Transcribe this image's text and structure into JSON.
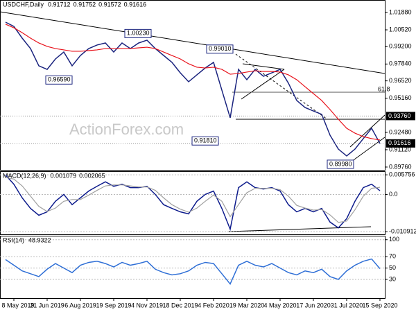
{
  "chart_data": [
    {
      "type": "line",
      "title": "USDCHF,Daily",
      "ohlc": [
        0.91712,
        0.91752,
        0.91572,
        0.91616
      ],
      "watermark": "ActionForex.com",
      "fib_label": "61.8",
      "ylim": [
        0.8954,
        1.0286
      ],
      "yticks": [
        {
          "value": 1.0188,
          "label": "1.01880"
        },
        {
          "value": 1.0052,
          "label": "1.00520"
        },
        {
          "value": 0.992,
          "label": "0.99200"
        },
        {
          "value": 0.9784,
          "label": "0.97840"
        },
        {
          "value": 0.9652,
          "label": "0.96520"
        },
        {
          "value": 0.9516,
          "label": "0.95160"
        },
        {
          "value": 0.9248,
          "label": "0.92480"
        },
        {
          "value": 0.9112,
          "label": "0.91120"
        },
        {
          "value": 0.8976,
          "label": "0.89760"
        }
      ],
      "markers": [
        {
          "value": 0.9376,
          "label": "0.93760"
        },
        {
          "value": 0.91616,
          "label": "0.91616"
        }
      ],
      "annotations": [
        {
          "value": 1.0023,
          "label": "1.00230"
        },
        {
          "value": 0.9659,
          "label": "0.96590"
        },
        {
          "value": 0.9901,
          "label": "0.99010"
        },
        {
          "value": 0.9181,
          "label": "0.91810"
        },
        {
          "value": 0.8998,
          "label": "0.89980"
        }
      ],
      "series": [
        {
          "color": "#1a237e",
          "values": [
            1.0112,
            1.0079,
            0.9987,
            0.9905,
            0.977,
            0.9742,
            0.9824,
            0.9878,
            0.977,
            0.9851,
            0.9905,
            0.9933,
            0.9949,
            0.9878,
            0.9949,
            0.9905,
            0.9949,
            0.9971,
            0.9905,
            0.9851,
            0.9797,
            0.9715,
            0.9645,
            0.9699,
            0.9753,
            0.9797,
            0.9579,
            0.9362,
            0.9742,
            0.9661,
            0.9742,
            0.9688,
            0.9715,
            0.9742,
            0.9634,
            0.9498,
            0.9443,
            0.9416,
            0.9389,
            0.9226,
            0.9117,
            0.9063,
            0.9117,
            0.9199,
            0.928,
            0.9161
          ]
        },
        {
          "color": "#e8121b",
          "values": [
            1.0096,
            1.0068,
            1.003,
            0.9987,
            0.9949,
            0.9922,
            0.9905,
            0.9895,
            0.9884,
            0.9884,
            0.9889,
            0.9895,
            0.9905,
            0.9905,
            0.9905,
            0.9905,
            0.9911,
            0.9916,
            0.9905,
            0.9878,
            0.9851,
            0.9824,
            0.9786,
            0.9759,
            0.9753,
            0.9759,
            0.9742,
            0.9704,
            0.971,
            0.9721,
            0.9731,
            0.9726,
            0.9726,
            0.9721,
            0.9699,
            0.9661,
            0.9606,
            0.9552,
            0.9498,
            0.9427,
            0.9351,
            0.928,
            0.9242,
            0.9215,
            0.9199,
            0.9188
          ]
        }
      ]
    },
    {
      "type": "line",
      "title": "MACD(12,26,9)",
      "readout": [
        0.001079,
        0.002065
      ],
      "ylim": [
        -0.0117,
        0.0068
      ],
      "yticks": [
        0.005756,
        {
          "value": 0,
          "label": "0.0"
        },
        -0.010912
      ],
      "series": [
        {
          "color": "#0d1b8c",
          "values": [
            0.0057,
            0.003,
            -0.001,
            -0.0041,
            -0.0061,
            -0.0051,
            -0.002,
            0,
            -0.003,
            -0.001,
            0.001,
            0.0024,
            0.0037,
            0.0024,
            0.003,
            0.002,
            0.002,
            0.0024,
            0,
            -0.003,
            -0.0041,
            -0.0051,
            -0.0057,
            -0.002,
            0,
            0.001,
            -0.0041,
            -0.0102,
            0.002,
            0.0037,
            0.002,
            0.0016,
            0.002,
            0.001,
            -0.003,
            -0.0051,
            -0.0041,
            -0.0051,
            -0.0041,
            -0.0081,
            -0.0098,
            -0.0071,
            -0.002,
            0.002,
            0.003,
            0.0011
          ]
        },
        {
          "color": "#a0a0a0",
          "values": [
            0.005,
            0.0045,
            0.0025,
            -0.0005,
            -0.0035,
            -0.005,
            -0.004,
            -0.002,
            -0.0015,
            -0.0015,
            -0.0002,
            0.0012,
            0.0025,
            0.0028,
            0.0028,
            0.0025,
            0.0022,
            0.0022,
            0.0012,
            -0.001,
            -0.003,
            -0.0043,
            -0.0052,
            -0.004,
            -0.002,
            -0.0002,
            -0.002,
            -0.0065,
            -0.003,
            0.0005,
            0.0018,
            0.0018,
            0.0018,
            0.0014,
            -0.0005,
            -0.0032,
            -0.004,
            -0.0046,
            -0.0044,
            -0.006,
            -0.0082,
            -0.0078,
            -0.0045,
            -0.0005,
            0.0018,
            0.0021
          ]
        }
      ]
    },
    {
      "type": "line",
      "title": "RSI(14)",
      "readout": [
        48.9322
      ],
      "ylim": [
        -3,
        107
      ],
      "yticks": [
        100,
        70,
        50,
        30
      ],
      "categories": [
        null,
        "8 May 2019",
        null,
        null,
        null,
        "21 Jun 2019",
        null,
        null,
        null,
        "6 Aug 2019",
        null,
        null,
        null,
        "19 Sep 2019",
        null,
        null,
        null,
        "4 Nov 2019",
        null,
        null,
        null,
        "18 Dec 2019",
        null,
        null,
        null,
        "4 Feb 2020",
        null,
        null,
        null,
        "19 Mar 2020",
        null,
        null,
        null,
        "4 May 2020",
        null,
        null,
        null,
        "17 Jun 2020",
        null,
        null,
        null,
        "31 Jul 2020",
        null,
        null,
        null,
        "15 Sep 2020"
      ],
      "series": [
        {
          "color": "#2f6fd6",
          "values": [
            65,
            55,
            45,
            40,
            35,
            48,
            58,
            50,
            42,
            55,
            60,
            62,
            58,
            52,
            60,
            55,
            58,
            62,
            48,
            42,
            38,
            40,
            45,
            55,
            60,
            58,
            40,
            22,
            55,
            62,
            55,
            52,
            58,
            50,
            42,
            38,
            45,
            42,
            48,
            35,
            30,
            45,
            55,
            62,
            66,
            48.9322
          ]
        }
      ]
    }
  ]
}
